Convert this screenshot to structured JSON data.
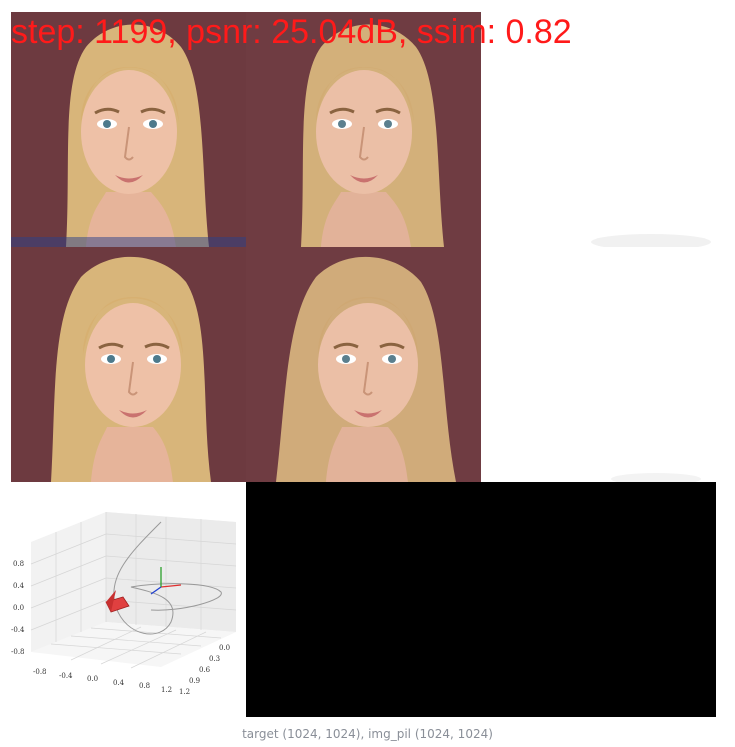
{
  "overlay": {
    "text": "step: 1199, psnr: 25.04dB, ssim: 0.82"
  },
  "caption": {
    "text": "target (1024, 1024), img_pil (1024, 1024)"
  },
  "plot3d": {
    "z_ticks": [
      "0.8",
      "0.4",
      "0.0",
      "-0.4",
      "-0.8"
    ],
    "x_ticks": [
      "-0.8",
      "-0.4",
      "0.0",
      "0.4",
      "0.8",
      "1.2"
    ],
    "y_ticks": [
      "0.0",
      "0.3",
      "0.6",
      "0.9",
      "1.2"
    ]
  },
  "colors": {
    "overlay": "#ff1a1a",
    "background_bar": "#7a3b42",
    "black_panel": "#000000"
  }
}
